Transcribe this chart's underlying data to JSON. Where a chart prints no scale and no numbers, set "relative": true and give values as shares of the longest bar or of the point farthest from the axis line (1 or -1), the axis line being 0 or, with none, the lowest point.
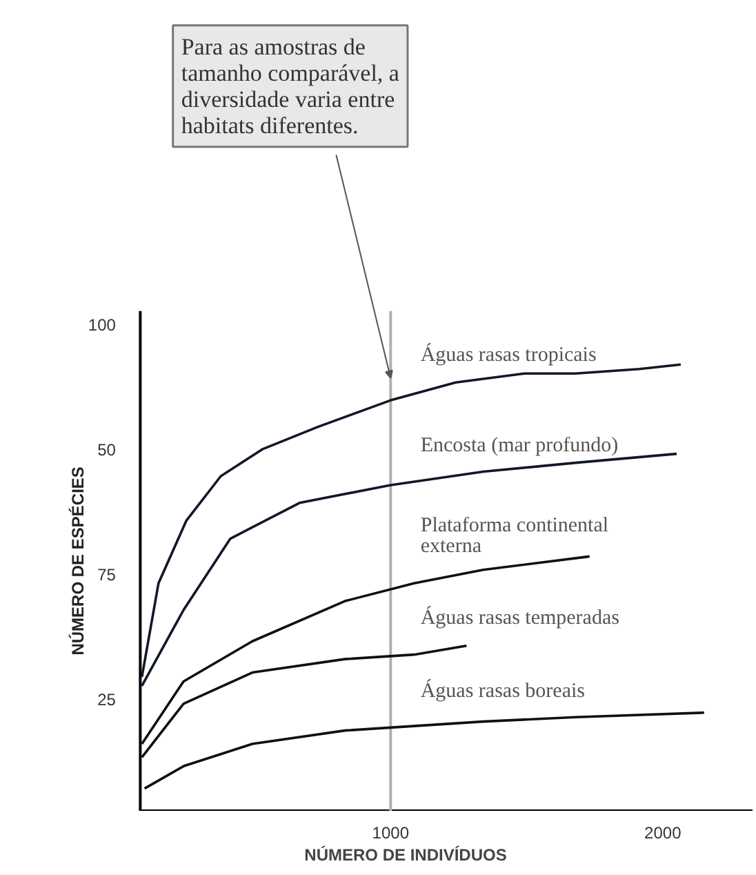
{
  "chart_data": {
    "type": "line",
    "xlabel": "NÚMERO DE INDIVÍDUOS",
    "ylabel": "NÚMERO DE ESPÉCIES",
    "relative": true,
    "xlim": [
      80,
      2330
    ],
    "xticks": [
      1000,
      2000
    ],
    "grid": false,
    "legend": false,
    "marker": "none",
    "line_style": "solid",
    "ref_lines": [
      {
        "axis": "x",
        "value": 1000,
        "label": null,
        "color": "#b0b0b0"
      }
    ],
    "annotations": [
      {
        "text": "Para as amostras de tamanho comparável, a diversidade varia entre habitats diferentes.",
        "x": 1000,
        "y": 0.97
      },
      "100",
      "50",
      "75",
      "25"
    ],
    "series": [
      {
        "name": "Águas rasas tropicais",
        "color": "#101828",
        "x": [
          86,
          147,
          249,
          376,
          528,
          731,
          1000,
          1239,
          1492,
          1680,
          1914,
          2066
        ],
        "values": [
          0.3,
          0.51,
          0.65,
          0.75,
          0.81,
          0.86,
          0.92,
          0.96,
          0.98,
          0.98,
          0.99,
          1
        ]
      },
      {
        "name": "Encosta (mar profundo)",
        "color": "#101828",
        "x": [
          86,
          239,
          411,
          665,
          1000,
          1340,
          1680,
          2051
        ],
        "values": [
          0.28,
          0.45,
          0.61,
          0.69,
          0.73,
          0.76,
          0.78,
          0.8
        ]
      },
      {
        "name": "Plataforma continental\nexterna",
        "color": "#101010",
        "x": [
          86,
          239,
          492,
          832,
          1086,
          1340,
          1731
        ],
        "values": [
          0.15,
          0.29,
          0.38,
          0.47,
          0.51,
          0.54,
          0.57
        ]
      },
      {
        "name": "Águas rasas temperadas",
        "color": "#101010",
        "x": [
          86,
          239,
          492,
          832,
          1086,
          1279
        ],
        "values": [
          0.12,
          0.24,
          0.31,
          0.34,
          0.35,
          0.37
        ]
      },
      {
        "name": "Águas rasas boreais",
        "color": "#101010",
        "x": [
          96,
          239,
          492,
          832,
          1086,
          1340,
          1680,
          2152
        ],
        "values": [
          0.05,
          0.1,
          0.15,
          0.18,
          0.19,
          0.2,
          0.21,
          0.22
        ]
      }
    ]
  }
}
